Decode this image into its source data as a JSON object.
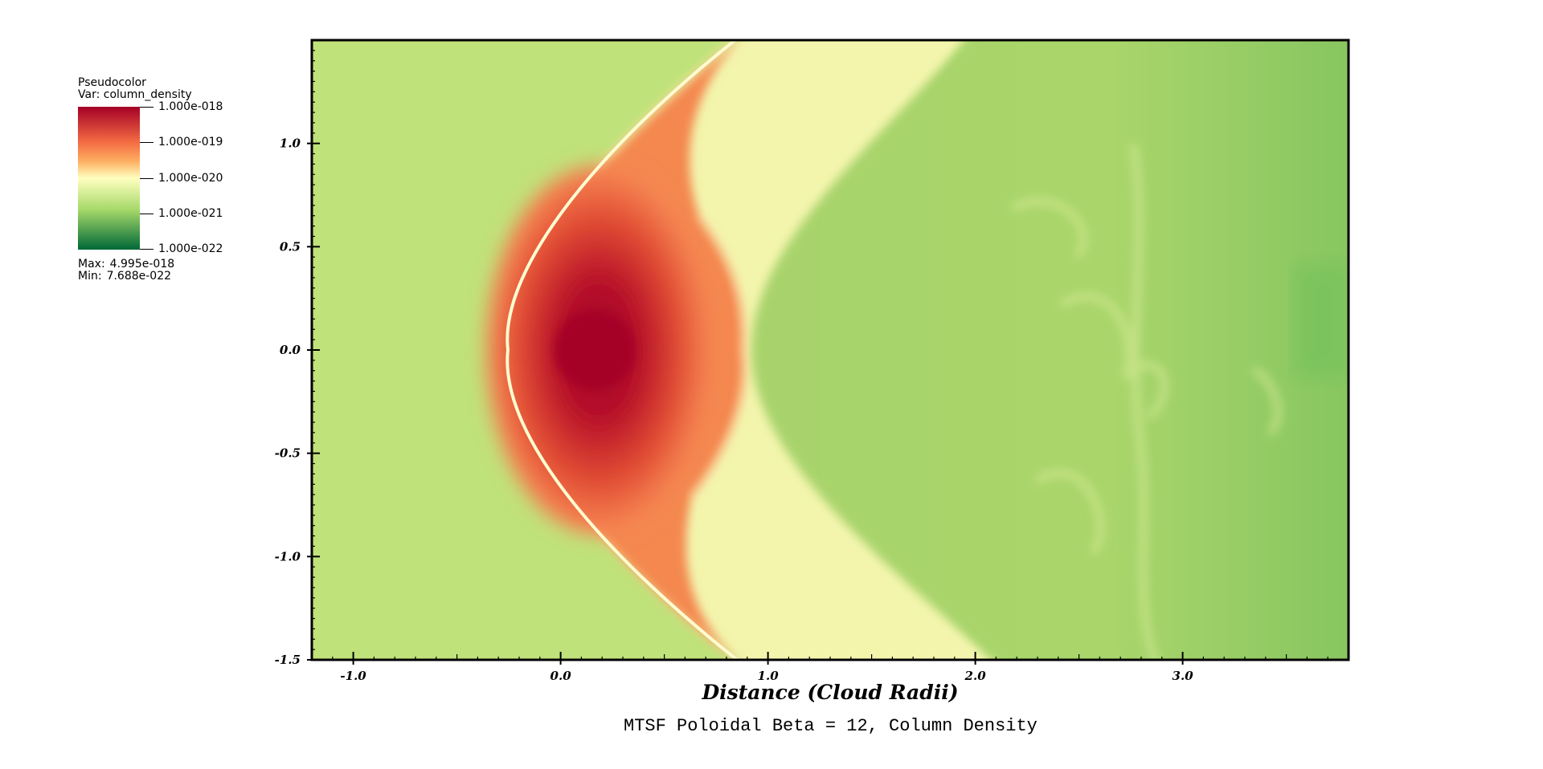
{
  "chart_data": {
    "type": "heatmap",
    "title": "MTSF Poloidal Beta = 12, Column Density",
    "xlabel": "Distance (Cloud Radii)",
    "ylabel": "",
    "xlim": [
      -1.2,
      3.8
    ],
    "ylim": [
      -1.5,
      1.5
    ],
    "xticks": [
      -1.0,
      0.0,
      1.0,
      2.0,
      3.0
    ],
    "xtick_labels": [
      "-1.0",
      "0.0",
      "1.0",
      "2.0",
      "3.0"
    ],
    "yticks": [
      1.0,
      0.5,
      0.0,
      -0.5,
      -1.0,
      -1.5
    ],
    "ytick_labels": [
      "1.0",
      "0.5",
      "0.0",
      "-0.5",
      "-1.0",
      "-1.5"
    ],
    "colorbar": {
      "plot_type": "Pseudocolor",
      "variable": "Var: column_density",
      "scale": "log",
      "ticks": [
        1e-18,
        1e-19,
        1e-20,
        1e-21,
        1e-22
      ],
      "tick_labels": [
        "1.000e-018",
        "1.000e-019",
        "1.000e-020",
        "1.000e-021",
        "1.000e-022"
      ],
      "colors": [
        "#a50026",
        "#f46d43",
        "#fdae61",
        "#ffffbf",
        "#a6d96a",
        "#006837"
      ],
      "max_label": "Max:",
      "max_value": "4.995e-018",
      "min_label": "Min:",
      "min_value": "7.688e-022"
    },
    "background_color": "#c0e27a"
  }
}
